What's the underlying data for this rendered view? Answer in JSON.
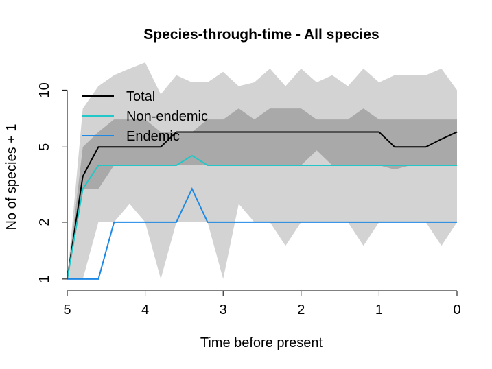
{
  "chart_data": {
    "type": "line",
    "title": "Species-through-time - All species",
    "xlabel": "Time before present",
    "ylabel": "No of species + 1",
    "x_scale": "reversed",
    "y_scale": "log",
    "xlim": [
      5,
      0
    ],
    "ylim": [
      0.95,
      13
    ],
    "x_ticks": [
      5,
      4,
      3,
      2,
      1,
      0
    ],
    "x_tick_labels": [
      "5",
      "4",
      "3",
      "2",
      "1",
      "0"
    ],
    "y_ticks": [
      1,
      2,
      5,
      10
    ],
    "y_tick_labels": [
      "1",
      "2",
      "5",
      "10"
    ],
    "grid": false,
    "legend_position": "top-left",
    "colors": {
      "outer_band": "#d3d3d3",
      "inner_band": "#a9a9a9",
      "total": "#000000",
      "nonendemic": "#22c7c7",
      "endemic": "#1e88e5"
    },
    "bands": {
      "outer": {
        "x": [
          5,
          4.8,
          4.6,
          4.4,
          4.2,
          4,
          3.8,
          3.6,
          3.4,
          3.2,
          3,
          2.8,
          2.6,
          2.4,
          2.2,
          2,
          1.8,
          1.6,
          1.4,
          1.2,
          1,
          0.8,
          0.6,
          0.4,
          0.2,
          0
        ],
        "lower": [
          1,
          1,
          2,
          2,
          2.5,
          2,
          1,
          2,
          2,
          2,
          1,
          2.5,
          2,
          2,
          1.5,
          2,
          2,
          2,
          2,
          1.5,
          2,
          2,
          2,
          2,
          1.5,
          2
        ],
        "upper": [
          1,
          8,
          10.5,
          12,
          13,
          14,
          9.5,
          12,
          11,
          11,
          12.5,
          10.5,
          11,
          13,
          10.5,
          13,
          11,
          12,
          10.5,
          13,
          11,
          12,
          12,
          12,
          13,
          10
        ]
      },
      "inner": {
        "x": [
          5,
          4.8,
          4.6,
          4.4,
          4.2,
          4,
          3.8,
          3.6,
          3.4,
          3.2,
          3,
          2.8,
          2.6,
          2.4,
          2.2,
          2,
          1.8,
          1.6,
          1.4,
          1.2,
          1,
          0.8,
          0.6,
          0.4,
          0.2,
          0
        ],
        "lower": [
          1,
          3,
          3,
          4,
          4,
          4,
          4,
          4,
          4,
          4,
          4,
          4,
          4,
          4,
          4,
          4,
          4.8,
          4,
          4,
          4,
          4,
          3.8,
          4,
          4,
          4,
          4
        ],
        "upper": [
          1,
          5,
          6,
          7,
          7,
          7,
          6,
          6,
          6,
          7,
          7,
          8,
          7,
          8,
          8,
          8,
          7,
          7,
          7,
          8,
          7,
          7,
          7,
          7,
          7,
          7
        ]
      }
    },
    "x": [
      5,
      4.8,
      4.6,
      4.4,
      4.2,
      4,
      3.8,
      3.6,
      3.4,
      3.2,
      3,
      2.8,
      2.6,
      2.4,
      2.2,
      2,
      1.8,
      1.6,
      1.4,
      1.2,
      1,
      0.8,
      0.6,
      0.4,
      0.2,
      0
    ],
    "series": [
      {
        "name": "Total",
        "color": "#000000",
        "values": [
          1,
          3.5,
          5,
          5,
          5,
          5,
          5,
          6,
          6,
          6,
          6,
          6,
          6,
          6,
          6,
          6,
          6,
          6,
          6,
          6,
          6,
          5,
          5,
          5,
          5.5,
          6
        ]
      },
      {
        "name": "Non-endemic",
        "color": "#22c7c7",
        "values": [
          1,
          3,
          4,
          4,
          4,
          4,
          4,
          4,
          4.5,
          4,
          4,
          4,
          4,
          4,
          4,
          4,
          4,
          4,
          4,
          4,
          4,
          4,
          4,
          4,
          4,
          4
        ]
      },
      {
        "name": "Endemic",
        "color": "#1e88e5",
        "values": [
          1,
          1,
          1,
          2,
          2,
          2,
          2,
          2,
          3,
          2,
          2,
          2,
          2,
          2,
          2,
          2,
          2,
          2,
          2,
          2,
          2,
          2,
          2,
          2,
          2,
          2
        ]
      }
    ]
  }
}
